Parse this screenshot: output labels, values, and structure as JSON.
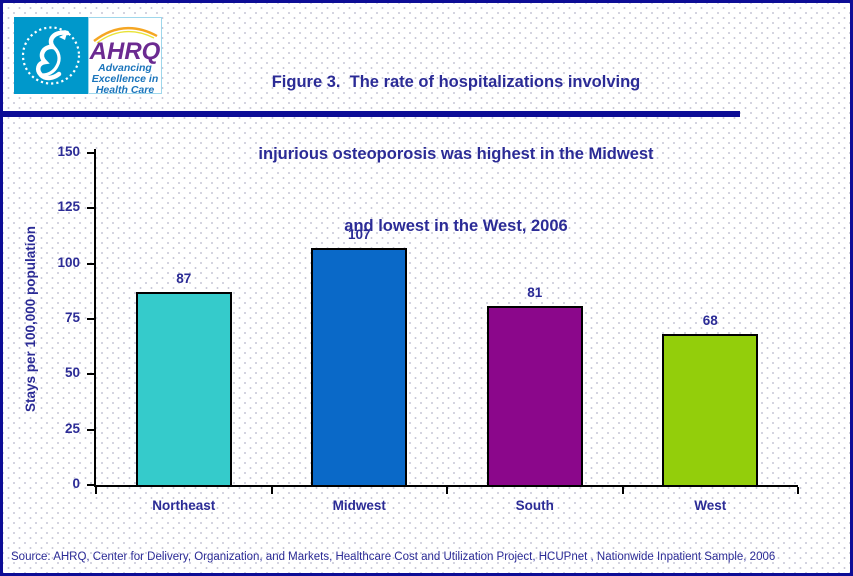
{
  "header": {
    "logo": {
      "brand": "AHRQ",
      "tagline_lines": [
        "Advancing",
        "Excellence in",
        "Health Care"
      ],
      "hhs_icon": "hhs-eagle-seal"
    },
    "title_lines": [
      "Figure 3.  The rate of hospitalizations involving",
      "injurious osteoporosis was highest in the Midwest",
      "and lowest in the West, 2006"
    ]
  },
  "chart_data": {
    "type": "bar",
    "title": "Figure 3. The rate of hospitalizations involving injurious osteoporosis was highest in the Midwest and lowest in the West, 2006",
    "categories": [
      "Northeast",
      "Midwest",
      "South",
      "West"
    ],
    "values": [
      87,
      107,
      81,
      68
    ],
    "data_labels": [
      "87",
      "107",
      "81",
      "68"
    ],
    "bar_colors": [
      "#35cbcb",
      "#0a69c8",
      "#8b078b",
      "#93ce0b"
    ],
    "xlabel": "",
    "ylabel": "Stays per 100,000 population",
    "ylim": [
      0,
      150
    ],
    "yticks": [
      0,
      25,
      50,
      75,
      100,
      125,
      150
    ],
    "grid": false,
    "legend_position": "none"
  },
  "footer": {
    "source": "Source: AHRQ, Center for Delivery, Organization, and Markets, Healthcare Cost and Utilization Project, HCUPnet , Nationwide Inpatient Sample, 2006"
  },
  "colors": {
    "navy_text": "#2b2b96",
    "rule": "#0d0d96",
    "axis": "#000000",
    "logo_teal": "#0098cb",
    "logo_purple": "#6b2a91",
    "logo_tagline_blue": "#1b75bc",
    "rainbow_orange": "#f5a623",
    "rainbow_yellow": "#e8e337"
  }
}
